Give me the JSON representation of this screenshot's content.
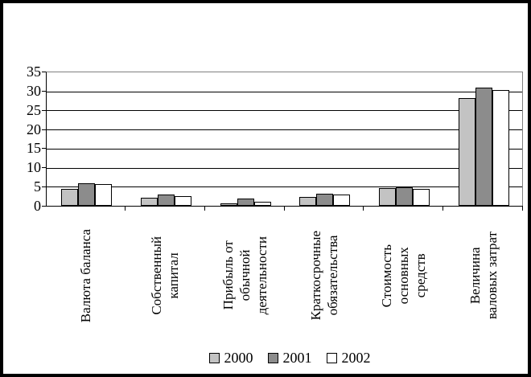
{
  "chart_data": {
    "type": "bar",
    "title": "",
    "xlabel": "",
    "ylabel": "",
    "categories": [
      "Валюта баланса",
      "Собственный капитал",
      "Прибыль от обычной деятельности",
      "Краткосрочные обязательства",
      "Стоимость основных средств",
      "Величина валовых затрат"
    ],
    "category_label_lines": [
      [
        "Валюта баланса"
      ],
      [
        "Собственный",
        "капитал"
      ],
      [
        "Прибыль от",
        "обычной",
        "деятельности"
      ],
      [
        "Краткосрочные",
        "обязательства"
      ],
      [
        "Стоимость",
        "основных",
        "средств"
      ],
      [
        "Величина",
        "валовых затрат"
      ]
    ],
    "series": [
      {
        "name": "2000",
        "color": "#c3c3c3",
        "values": [
          4.4,
          2.2,
          0.6,
          2.4,
          4.6,
          28.2
        ]
      },
      {
        "name": "2001",
        "color": "#8c8c8c",
        "values": [
          6.0,
          3.0,
          2.0,
          3.2,
          4.9,
          31.0
        ]
      },
      {
        "name": "2002",
        "color": "#ffffff",
        "values": [
          5.6,
          2.6,
          1.1,
          3.0,
          4.4,
          30.3
        ]
      }
    ],
    "ylim": [
      0,
      35
    ],
    "yticks": [
      0,
      5,
      10,
      15,
      20,
      25,
      30,
      35
    ],
    "grid": true,
    "legend_position": "bottom",
    "colors": {
      "background": "#ffffff",
      "frame_border": "#000000",
      "plot_border": "#808080",
      "axis": "#000000",
      "gridline": "#000000",
      "bar_outline": "#000000"
    }
  }
}
